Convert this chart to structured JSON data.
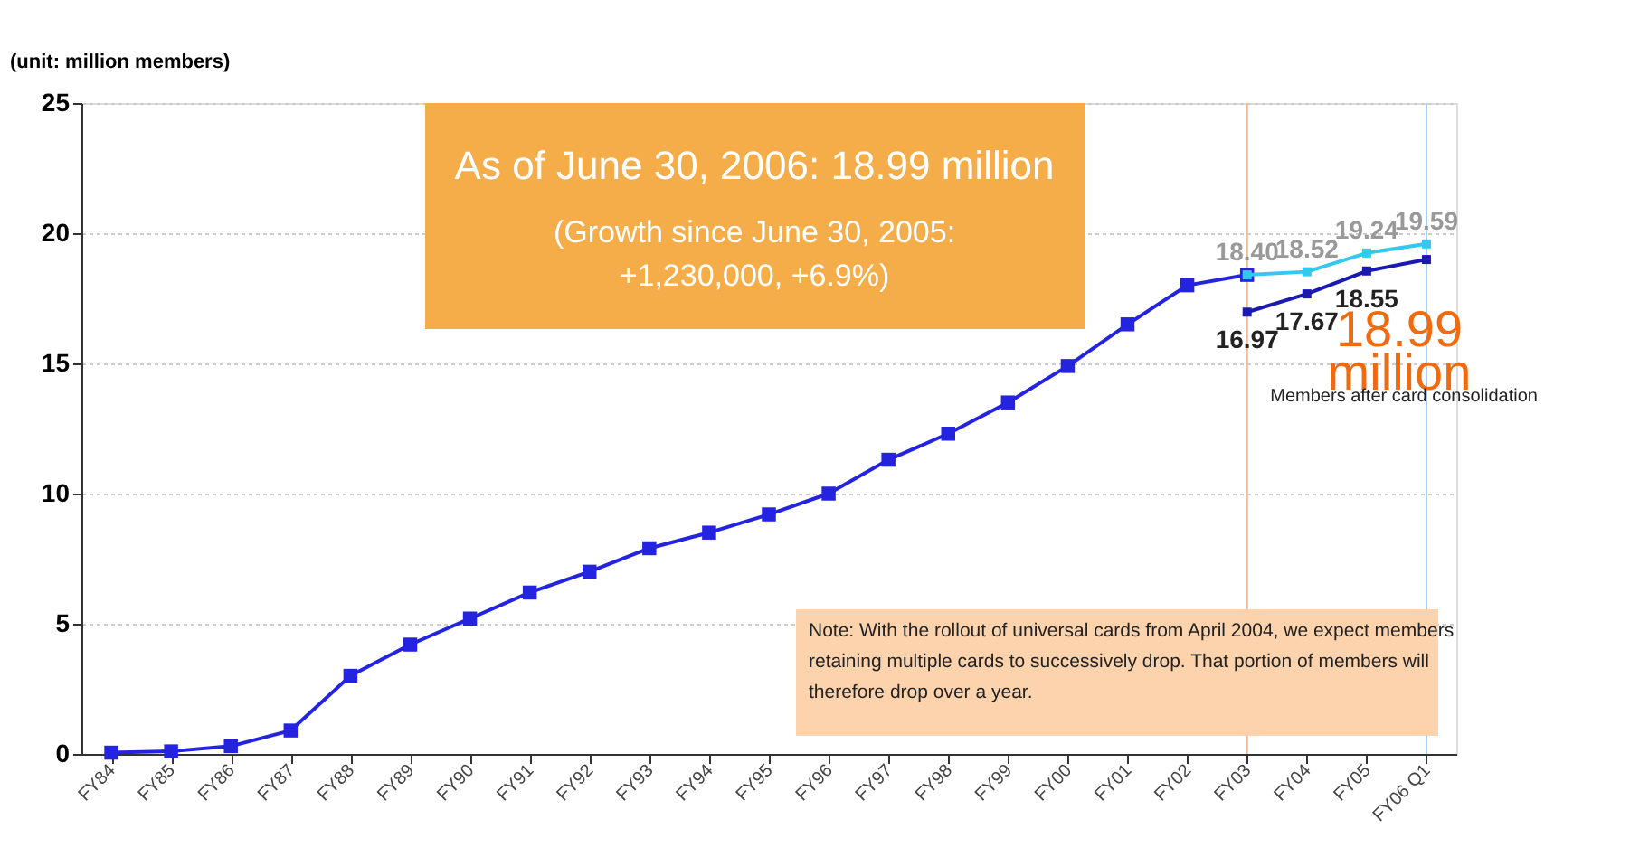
{
  "chart_data": {
    "type": "line",
    "title": "As of June 30, 2006: 18.99 million",
    "subtitle": "(Growth since June 30, 2005: +1,230,000, +6.9%)",
    "ylabel": "(unit: million members)",
    "categories": [
      "FY84",
      "FY85",
      "FY86",
      "FY87",
      "FY88",
      "FY89",
      "FY90",
      "FY91",
      "FY92",
      "FY93",
      "FY94",
      "FY95",
      "FY96",
      "FY97",
      "FY98",
      "FY99",
      "FY00",
      "FY01",
      "FY02",
      "FY03",
      "FY04",
      "FY05",
      "FY06 Q1"
    ],
    "series": [
      {
        "color": "#2323e0",
        "values": [
          0.05,
          0.1,
          0.3,
          0.9,
          3.0,
          4.2,
          5.2,
          6.2,
          7.0,
          7.9,
          8.5,
          9.2,
          10.0,
          11.3,
          12.3,
          13.5,
          14.9,
          16.5,
          18.0,
          18.4,
          null,
          null,
          null
        ]
      },
      {
        "color": "#33c8ee",
        "values": [
          null,
          null,
          null,
          null,
          null,
          null,
          null,
          null,
          null,
          null,
          null,
          null,
          null,
          null,
          null,
          null,
          null,
          null,
          null,
          18.4,
          18.52,
          19.24,
          19.59
        ],
        "value_labels": [
          null,
          null,
          null,
          null,
          null,
          null,
          null,
          null,
          null,
          null,
          null,
          null,
          null,
          null,
          null,
          null,
          null,
          null,
          null,
          "18.40",
          "18.52",
          "19.24",
          "19.59"
        ]
      },
      {
        "color": "#1a1ab0",
        "values": [
          null,
          null,
          null,
          null,
          null,
          null,
          null,
          null,
          null,
          null,
          null,
          null,
          null,
          null,
          null,
          null,
          null,
          null,
          null,
          16.97,
          17.67,
          18.55,
          18.99
        ],
        "value_labels": [
          null,
          null,
          null,
          null,
          null,
          null,
          null,
          null,
          null,
          null,
          null,
          null,
          null,
          null,
          null,
          null,
          null,
          null,
          null,
          "16.97",
          "17.67",
          "18.55",
          null
        ]
      }
    ],
    "ylim": [
      0,
      25
    ],
    "yticks": [
      0,
      5,
      10,
      15,
      20,
      25
    ],
    "grid": "y",
    "legend": false,
    "marker": "square",
    "line_style": "solid",
    "ref_lines": [
      {
        "axis": "x",
        "value": "FY03",
        "color": "#f0b890"
      },
      {
        "axis": "x",
        "value": "FY06 Q1",
        "color": "#a8c8f0"
      }
    ],
    "annotations": [
      {
        "text": "18.99 million",
        "x": "FY06 Q1",
        "y": 18.99
      },
      "Members after card consolidation",
      "Note: With the rollout of universal cards from April 2004, we expect members retaining multiple cards to successively drop. That portion of members will therefore drop over a year."
    ]
  }
}
